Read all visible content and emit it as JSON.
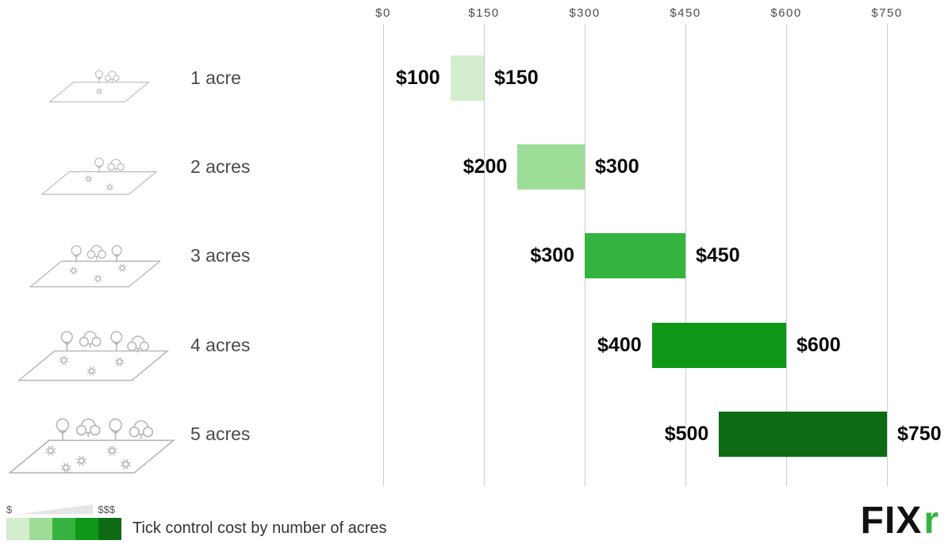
{
  "chart_data": {
    "type": "bar",
    "variant": "horizontal-range",
    "title": "Tick control cost by number of acres",
    "xlabel": "",
    "ylabel": "",
    "xlim": [
      0,
      750
    ],
    "grid": "vertical",
    "legend_position": "bottom-left",
    "x_ticks": [
      {
        "label": "$0",
        "value": 0
      },
      {
        "label": "$150",
        "value": 150
      },
      {
        "label": "$300",
        "value": 300
      },
      {
        "label": "$450",
        "value": 450
      },
      {
        "label": "$600",
        "value": 600
      },
      {
        "label": "$750",
        "value": 750
      }
    ],
    "categories": [
      "1 acre",
      "2 acres",
      "3 acres",
      "4 acres",
      "5 acres"
    ],
    "series": [
      {
        "name": "1 acre",
        "min": 100,
        "max": 150,
        "min_label": "$100",
        "max_label": "$150",
        "color": "#d3edcd"
      },
      {
        "name": "2 acres",
        "min": 200,
        "max": 300,
        "min_label": "$200",
        "max_label": "$300",
        "color": "#9edd97"
      },
      {
        "name": "3 acres",
        "min": 300,
        "max": 450,
        "min_label": "$300",
        "max_label": "$450",
        "color": "#35b540"
      },
      {
        "name": "4 acres",
        "min": 400,
        "max": 600,
        "min_label": "$400",
        "max_label": "$600",
        "color": "#0f9718"
      },
      {
        "name": "5 acres",
        "min": 500,
        "max": 750,
        "min_label": "$500",
        "max_label": "$750",
        "color": "#0d6b15"
      }
    ]
  },
  "legend": {
    "low": "$",
    "high": "$$$",
    "caption": "Tick control cost by number of acres"
  },
  "logo": {
    "fix": "FIX",
    "r": "r",
    "accent_color": "#35b540"
  }
}
